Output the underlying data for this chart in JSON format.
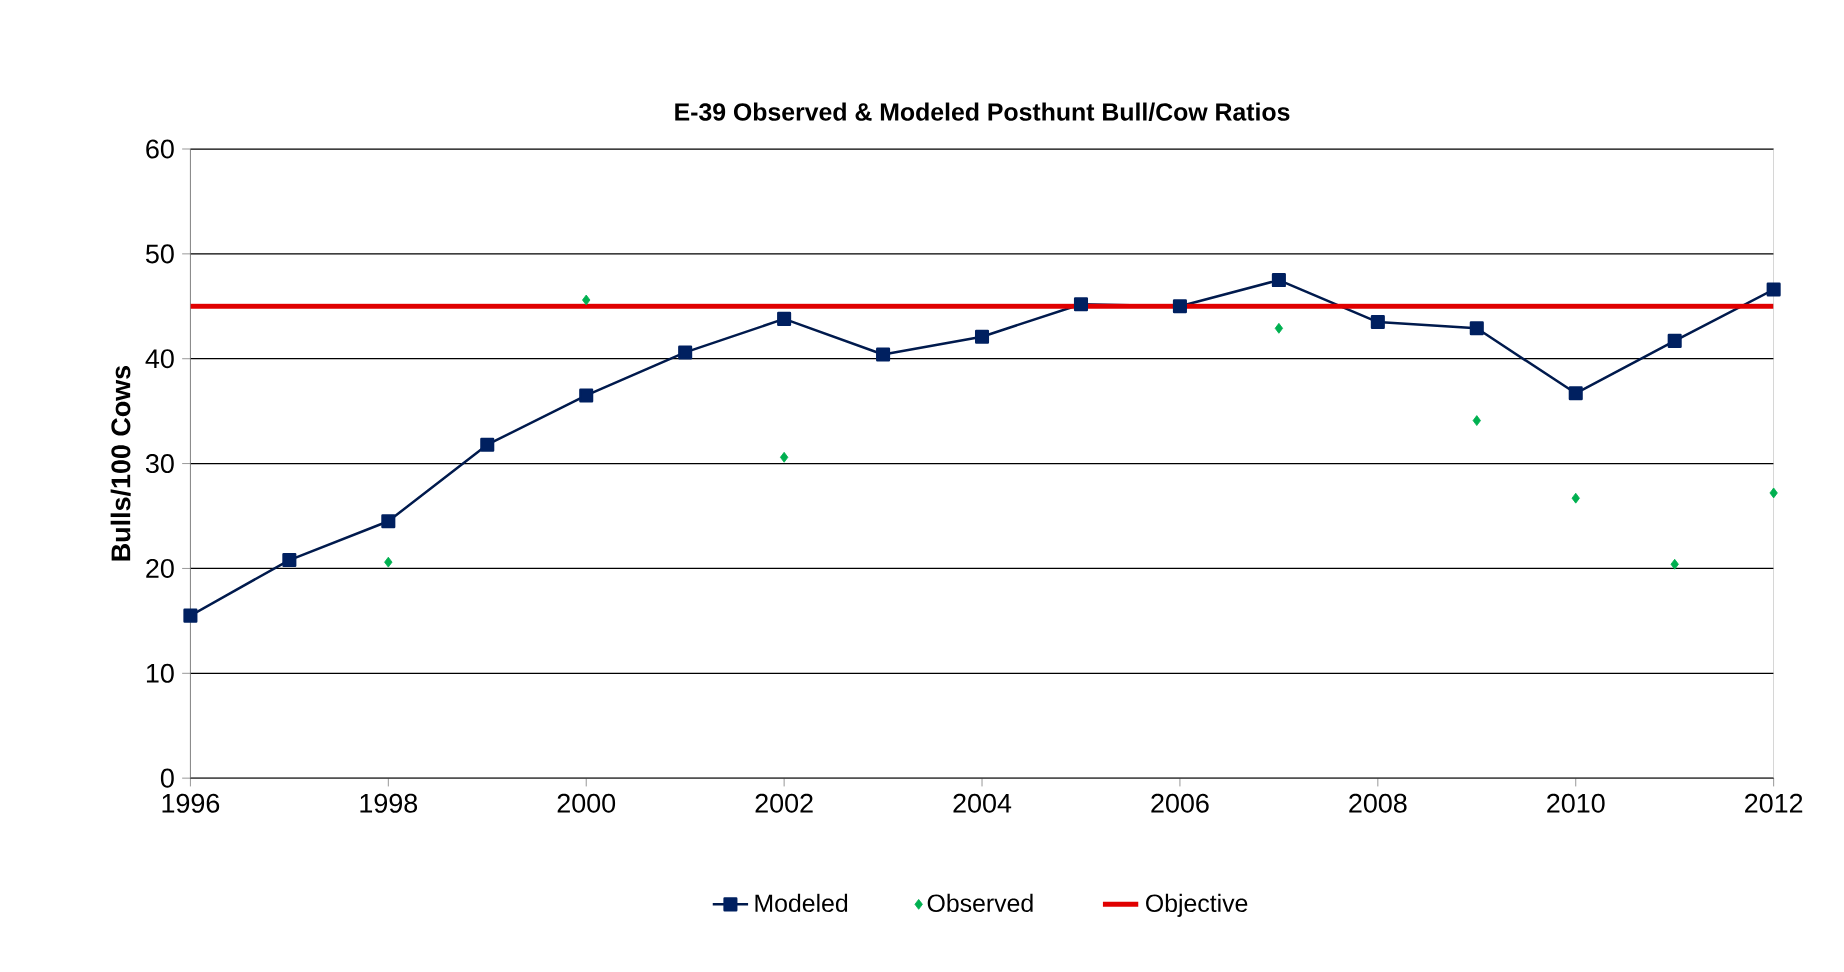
{
  "chart_data": {
    "type": "line",
    "title": "E-39 Observed & Modeled Posthunt Bull/Cow Ratios",
    "ylabel": "Bulls/100 Cows",
    "xlim": [
      1996,
      2012
    ],
    "xticks": [
      1996,
      1998,
      2000,
      2002,
      2004,
      2006,
      2008,
      2010,
      2012
    ],
    "ylim": [
      0,
      60
    ],
    "yticks": [
      0,
      10,
      20,
      30,
      40,
      50,
      60
    ],
    "grid": "y",
    "legend": "bottom",
    "series": [
      {
        "name": "Modeled",
        "marker": "square",
        "color": "#002060",
        "x": [
          1996,
          1997,
          1998,
          1999,
          2000,
          2001,
          2002,
          2003,
          2004,
          2005,
          2006,
          2007,
          2008,
          2009,
          2010,
          2011,
          2012
        ],
        "values": [
          15.5,
          20.8,
          24.5,
          31.8,
          36.5,
          40.6,
          43.8,
          40.4,
          42.1,
          45.2,
          45.0,
          47.5,
          43.5,
          42.9,
          36.7,
          41.7,
          46.6
        ]
      },
      {
        "name": "Observed",
        "type": "scatter",
        "marker": "diamond",
        "color": "#00b050",
        "x": [
          1998,
          2000,
          2002,
          2007,
          2009,
          2010,
          2011,
          2012
        ],
        "values": [
          20.6,
          45.6,
          30.6,
          42.9,
          34.1,
          26.7,
          20.4,
          27.2
        ]
      }
    ],
    "ref_lines": [
      {
        "axis": "y",
        "value": 45,
        "label": "Objective",
        "color": "#e00000"
      }
    ]
  }
}
